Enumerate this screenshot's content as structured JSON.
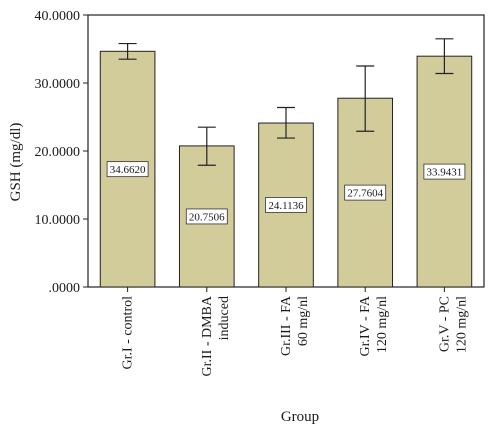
{
  "chart_data": {
    "type": "bar",
    "categories": [
      [
        "Gr.I - control"
      ],
      [
        "Gr.II - DMBA",
        "induced"
      ],
      [
        "Gr.III - FA",
        "60 mg/nl"
      ],
      [
        "Gr.IV - FA",
        "120 mg/nl"
      ],
      [
        "Gr.V - PC",
        "120 mg/nl"
      ]
    ],
    "values": [
      34.662,
      20.7506,
      24.1136,
      27.7604,
      33.9431
    ],
    "value_labels": [
      "34.6620",
      "20.7506",
      "24.1136",
      "27.7604",
      "33.9431"
    ],
    "error_bars": [
      [
        33.5,
        35.8
      ],
      [
        17.9,
        23.5
      ],
      [
        21.9,
        26.4
      ],
      [
        22.9,
        32.5
      ],
      [
        31.4,
        36.5
      ]
    ],
    "ylim": [
      0,
      40
    ],
    "yticks": [
      0,
      10,
      20,
      30,
      40
    ],
    "ytick_labels": [
      ".0000",
      "10.0000",
      "20.0000",
      "30.0000",
      "40.0000"
    ],
    "xlabel": "Group",
    "ylabel": "GSH (mg/dl)",
    "bar_color": "#d2cc9a",
    "bar_edge_color": "#222222",
    "grid": false
  }
}
